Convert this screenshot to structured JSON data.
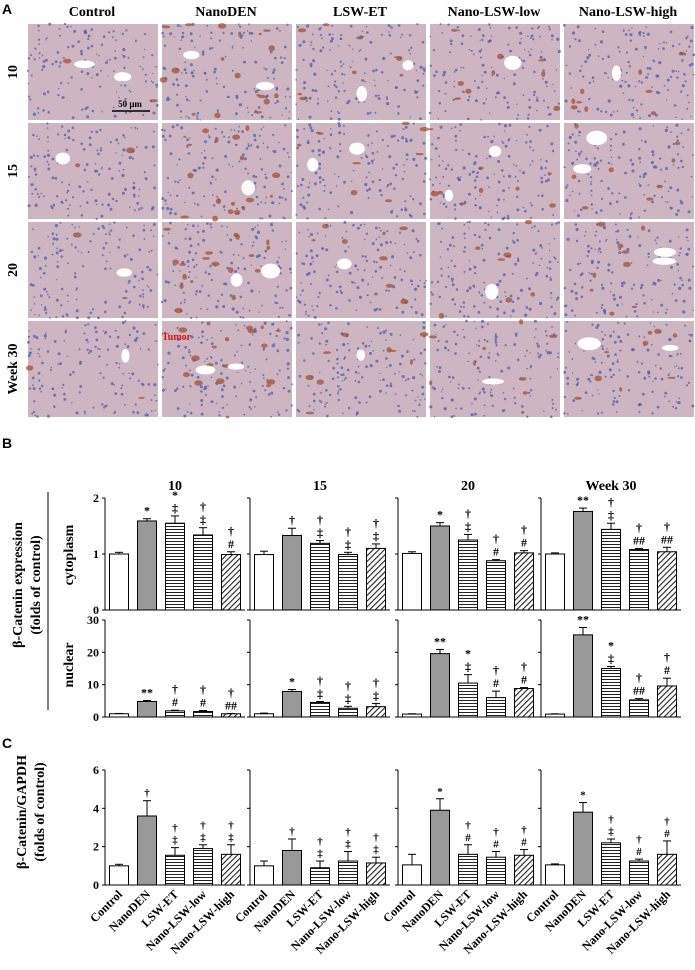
{
  "panel_letters": {
    "a": "A",
    "b": "B",
    "c": "C"
  },
  "panel_a": {
    "columns": [
      "Control",
      "NanoDEN",
      "LSW-ET",
      "Nano-LSW-low",
      "Nano-LSW-high"
    ],
    "rows": [
      "10",
      "15",
      "20",
      "Week 30"
    ],
    "scale_bar": "50 μm",
    "tumor_label": "Tumor",
    "stain_colors": {
      "tissue": "#cdb6c2",
      "nuclei": "#4a5fb0",
      "positive": "#a04a2e",
      "lumen": "#ffffff"
    }
  },
  "panel_b": {
    "ylabel_line1": "β-Catenin expression",
    "ylabel_line2": "(folds of control)",
    "row_labels": [
      "cytoplasm",
      "nuclear"
    ]
  },
  "panel_c": {
    "ylabel_line1": "β-Catenin/GAPDH",
    "ylabel_line2": "(folds of control)"
  },
  "chart_data": [
    {
      "type": "bar",
      "panel": "B-cytoplasm",
      "categories": [
        "Control",
        "NanoDEN",
        "LSW-ET",
        "Nano-LSW-low",
        "Nano-LSW-high"
      ],
      "ylim": [
        0,
        2
      ],
      "yticks": [
        "0",
        "1",
        "2"
      ],
      "groups": [
        {
          "title": "10",
          "values": [
            1.0,
            1.59,
            1.55,
            1.34,
            0.99
          ],
          "errors": [
            0.03,
            0.04,
            0.13,
            0.13,
            0.05
          ],
          "marks": [
            [],
            [
              "*"
            ],
            [
              "*",
              "‡"
            ],
            [
              "†",
              "‡"
            ],
            [
              "†",
              "#"
            ]
          ]
        },
        {
          "title": "15",
          "values": [
            0.99,
            1.33,
            1.19,
            0.99,
            1.1
          ],
          "errors": [
            0.06,
            0.13,
            0.05,
            0.04,
            0.08
          ],
          "marks": [
            [],
            [
              "†"
            ],
            [
              "†",
              "‡"
            ],
            [
              "†",
              "‡"
            ],
            [
              "†",
              "‡"
            ]
          ]
        },
        {
          "title": "20",
          "values": [
            1.01,
            1.5,
            1.25,
            0.88,
            1.02
          ],
          "errors": [
            0.03,
            0.06,
            0.1,
            0.02,
            0.04
          ],
          "marks": [
            [],
            [
              "*"
            ],
            [
              "†",
              "‡"
            ],
            [
              "†",
              "#"
            ],
            [
              "†",
              "#"
            ]
          ]
        },
        {
          "title": "Week 30",
          "values": [
            1.0,
            1.76,
            1.44,
            1.08,
            1.04
          ],
          "errors": [
            0.02,
            0.06,
            0.11,
            0.02,
            0.08
          ],
          "marks": [
            [],
            [
              "**"
            ],
            [
              "†",
              "‡"
            ],
            [
              "†",
              "##"
            ],
            [
              "†",
              "##"
            ]
          ]
        }
      ]
    },
    {
      "type": "bar",
      "panel": "B-nuclear",
      "categories": [
        "Control",
        "NanoDEN",
        "LSW-ET",
        "Nano-LSW-low",
        "Nano-LSW-high"
      ],
      "ylim": [
        0,
        30
      ],
      "yticks": [
        "0",
        "10",
        "20",
        "30"
      ],
      "groups": [
        {
          "title": "10",
          "values": [
            1.0,
            4.8,
            1.9,
            1.7,
            1.0
          ],
          "errors": [
            0.1,
            0.3,
            0.2,
            0.3,
            0.1
          ],
          "marks": [
            [],
            [
              "**"
            ],
            [
              "†",
              "#"
            ],
            [
              "†",
              "#"
            ],
            [
              "†",
              "##"
            ]
          ]
        },
        {
          "title": "15",
          "values": [
            1.0,
            7.9,
            4.5,
            2.7,
            3.2
          ],
          "errors": [
            0.2,
            0.6,
            0.3,
            0.6,
            1.0
          ],
          "marks": [
            [],
            [
              "*"
            ],
            [
              "†",
              "‡"
            ],
            [
              "†",
              "‡"
            ],
            [
              "†",
              "‡"
            ]
          ]
        },
        {
          "title": "20",
          "values": [
            0.9,
            19.6,
            10.5,
            6.0,
            8.8
          ],
          "errors": [
            0.1,
            1.3,
            2.6,
            2.0,
            0.3
          ],
          "marks": [
            [],
            [
              "**"
            ],
            [
              "*",
              "‡"
            ],
            [
              "†",
              "#"
            ],
            [
              "†",
              "#"
            ]
          ]
        },
        {
          "title": "Week 30",
          "values": [
            0.9,
            25.4,
            15.0,
            5.3,
            9.6
          ],
          "errors": [
            0.1,
            2.3,
            0.6,
            0.4,
            2.4
          ],
          "marks": [
            [],
            [
              "**"
            ],
            [
              "*",
              "‡"
            ],
            [
              "†",
              "##"
            ],
            [
              "†",
              "#"
            ]
          ]
        }
      ]
    },
    {
      "type": "bar",
      "panel": "C",
      "categories": [
        "Control",
        "NanoDEN",
        "LSW-ET",
        "Nano-LSW-low",
        "Nano-LSW-high"
      ],
      "ylim": [
        0,
        6
      ],
      "yticks": [
        "0",
        "2",
        "4",
        "6"
      ],
      "groups": [
        {
          "values": [
            1.0,
            3.6,
            1.55,
            1.9,
            1.6
          ],
          "errors": [
            0.08,
            0.8,
            0.4,
            0.2,
            0.5
          ],
          "marks": [
            [],
            [
              "†"
            ],
            [
              "†",
              "‡"
            ],
            [
              "†",
              "‡"
            ],
            [
              "†",
              "‡"
            ]
          ]
        },
        {
          "values": [
            1.0,
            1.8,
            0.9,
            1.25,
            1.15
          ],
          "errors": [
            0.25,
            0.6,
            0.35,
            0.5,
            0.3
          ],
          "marks": [
            [],
            [
              "†"
            ],
            [
              "†",
              "‡"
            ],
            [
              "†",
              "‡"
            ],
            [
              "†",
              "‡"
            ]
          ]
        },
        {
          "values": [
            1.05,
            3.9,
            1.6,
            1.45,
            1.55
          ],
          "errors": [
            0.55,
            0.6,
            0.5,
            0.3,
            0.3
          ],
          "marks": [
            [],
            [
              "*"
            ],
            [
              "†",
              "#"
            ],
            [
              "†",
              "#"
            ],
            [
              "†",
              "#"
            ]
          ]
        },
        {
          "values": [
            1.05,
            3.8,
            2.2,
            1.25,
            1.6
          ],
          "errors": [
            0.05,
            0.5,
            0.2,
            0.1,
            0.7
          ],
          "marks": [
            [],
            [
              "*"
            ],
            [
              "†",
              "‡"
            ],
            [
              "†",
              "#"
            ],
            [
              "†",
              "#"
            ]
          ]
        }
      ]
    }
  ]
}
